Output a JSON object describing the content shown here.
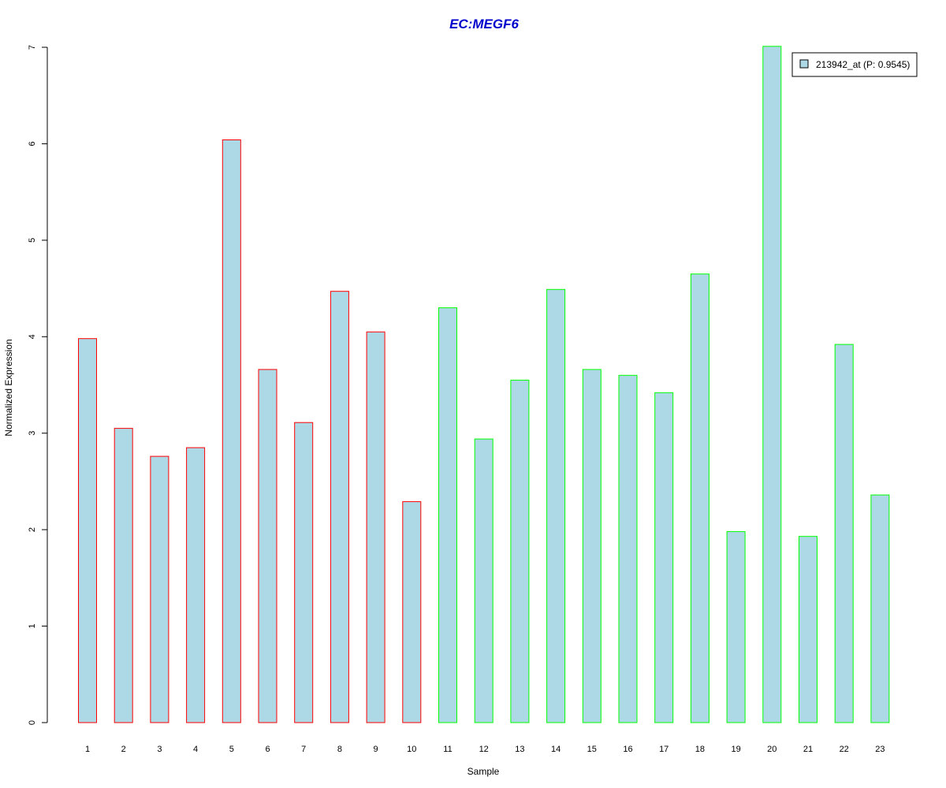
{
  "chart_data": {
    "type": "bar",
    "title": "EC:MEGF6",
    "title_color": "#0000CC",
    "xlabel": "Sample",
    "ylabel": "Normalized Expression",
    "ylim": [
      0,
      7
    ],
    "yticks": [
      "0",
      "1",
      "2",
      "3",
      "4",
      "5",
      "6",
      "7"
    ],
    "categories": [
      "1",
      "2",
      "3",
      "4",
      "5",
      "6",
      "7",
      "8",
      "9",
      "10",
      "11",
      "12",
      "13",
      "14",
      "15",
      "16",
      "17",
      "18",
      "19",
      "20",
      "21",
      "22",
      "23"
    ],
    "values": [
      3.98,
      3.05,
      2.76,
      2.85,
      6.04,
      3.66,
      3.11,
      4.47,
      4.05,
      2.29,
      4.3,
      2.94,
      3.55,
      4.49,
      3.66,
      3.6,
      3.42,
      4.65,
      1.98,
      7.01,
      1.93,
      3.92,
      2.36
    ],
    "bar_fill": "#ADD8E6",
    "group_colors": {
      "group_1": "#FF0000",
      "group_2": "#00FF00"
    },
    "bar_groups": [
      "group_1",
      "group_1",
      "group_1",
      "group_1",
      "group_1",
      "group_1",
      "group_1",
      "group_1",
      "group_1",
      "group_1",
      "group_2",
      "group_2",
      "group_2",
      "group_2",
      "group_2",
      "group_2",
      "group_2",
      "group_2",
      "group_2",
      "group_2",
      "group_2",
      "group_2",
      "group_2"
    ],
    "legend": {
      "entries": [
        "213942_at (P: 0.9545)"
      ],
      "placement": "top-right"
    },
    "grid": false
  }
}
